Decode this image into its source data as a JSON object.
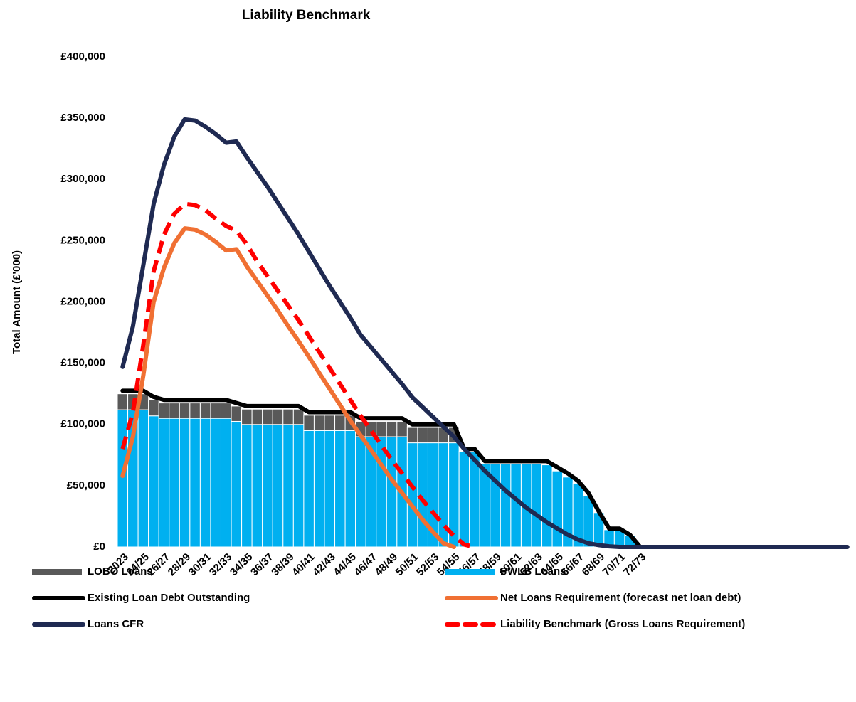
{
  "chart_data": {
    "type": "bar",
    "title": "Liability Benchmark",
    "y_label": "Total Amount (£'000)",
    "categories": [
      "2023",
      null,
      "24/25",
      null,
      "26/27",
      null,
      "28/29",
      null,
      "30/31",
      null,
      "32/33",
      null,
      "34/35",
      null,
      "36/37",
      null,
      "38/39",
      null,
      "40/41",
      null,
      "42/43",
      null,
      "44/45",
      null,
      "46/47",
      null,
      "48/49",
      null,
      "50/51",
      null,
      "52/53",
      null,
      "54/55",
      null,
      "56/57",
      null,
      "58/59",
      null,
      "60/61",
      null,
      "62/63",
      null,
      "64/65",
      null,
      "66/67",
      null,
      "68/69",
      null,
      "70/71",
      null,
      "72/73",
      null,
      null,
      null,
      null,
      null,
      null,
      null,
      null,
      null,
      null,
      null,
      null,
      null,
      null,
      null,
      null,
      null,
      null,
      null,
      null
    ],
    "ylim": [
      0,
      400000
    ],
    "yticks": [
      {
        "value": 0,
        "label": "£0"
      },
      {
        "value": 50000,
        "label": "£50,000"
      },
      {
        "value": 100000,
        "label": "£100,000"
      },
      {
        "value": 150000,
        "label": "£150,000"
      },
      {
        "value": 200000,
        "label": "£200,000"
      },
      {
        "value": 250000,
        "label": "£250,000"
      },
      {
        "value": 300000,
        "label": "£300,000"
      },
      {
        "value": 350000,
        "label": "£350,000"
      },
      {
        "value": 400000,
        "label": "£400,000"
      }
    ],
    "grid": false,
    "stacked": true,
    "series": [
      {
        "name": "LOBO Loans",
        "type": "bar",
        "color": "#595959",
        "values": [
          13000,
          13000,
          13000,
          13000,
          12500,
          12500,
          12500,
          12500,
          12500,
          12500,
          12500,
          12500,
          12500,
          12500,
          12500,
          12500,
          12500,
          12500,
          12500,
          12500,
          12500,
          12500,
          12500,
          12500,
          12500,
          12500,
          12500,
          12500,
          12500,
          12500,
          12500,
          12500,
          12500,
          0,
          0,
          0,
          0,
          0,
          0,
          0,
          0,
          0,
          0,
          0,
          0,
          0,
          0,
          0,
          0,
          0,
          0,
          0,
          0,
          0,
          0,
          0,
          0,
          0,
          0,
          0,
          0,
          0,
          0,
          0,
          0,
          0,
          0,
          0,
          0,
          0,
          0
        ]
      },
      {
        "name": "PWLB Loans",
        "type": "bar",
        "color": "#00b0f0",
        "values": [
          112000,
          112000,
          112000,
          107000,
          105000,
          105000,
          105000,
          105000,
          105000,
          105000,
          105000,
          102500,
          100000,
          100000,
          100000,
          100000,
          100000,
          100000,
          95000,
          95000,
          95000,
          95000,
          95000,
          90000,
          90000,
          90000,
          90000,
          90000,
          85000,
          85000,
          85000,
          85000,
          85000,
          78000,
          78000,
          68000,
          68000,
          68000,
          68000,
          68000,
          68000,
          67000,
          62000,
          57000,
          52000,
          42000,
          28000,
          14000,
          14000,
          9000,
          0,
          0,
          0,
          0,
          0,
          0,
          0,
          0,
          0,
          0,
          0,
          0,
          0,
          0,
          0,
          0,
          0,
          0,
          0,
          0,
          0
        ]
      },
      {
        "name": "Existing Loan Debt Outstanding",
        "type": "line",
        "color": "#000000",
        "line_style": "solid",
        "values": [
          127500,
          127500,
          127500,
          122500,
          120000,
          120000,
          120000,
          120000,
          120000,
          120000,
          120000,
          117500,
          115000,
          115000,
          115000,
          115000,
          115000,
          115000,
          110000,
          110000,
          110000,
          110000,
          110000,
          105000,
          105000,
          105000,
          105000,
          105000,
          100000,
          100000,
          100000,
          100000,
          100000,
          80000,
          80000,
          70000,
          70000,
          70000,
          70000,
          70000,
          70000,
          70000,
          65000,
          60000,
          54000,
          44000,
          29000,
          15000,
          15000,
          10000,
          0,
          0,
          0,
          0,
          0,
          0,
          0,
          0,
          0,
          0,
          0,
          0,
          0,
          0,
          0,
          0,
          0,
          0,
          0,
          0,
          0
        ]
      },
      {
        "name": "Net Loans Requirement (forecast net loan debt)",
        "type": "line",
        "color": "#f07033",
        "line_style": "solid",
        "values": [
          58000,
          90000,
          140000,
          200000,
          228000,
          248000,
          260000,
          259000,
          255000,
          249000,
          242000,
          243000,
          229000,
          217000,
          205000,
          193000,
          180000,
          168000,
          155000,
          142000,
          129000,
          116000,
          103000,
          91000,
          79000,
          67000,
          55000,
          44000,
          33000,
          22000,
          12000,
          3000,
          0,
          null,
          null,
          null,
          null,
          null,
          null,
          null,
          null,
          null,
          null,
          null,
          null,
          null,
          null,
          null,
          null,
          null,
          null,
          null,
          null,
          null,
          null,
          null,
          null,
          null,
          null,
          null,
          null,
          null,
          null,
          null,
          null,
          null,
          null,
          null,
          null,
          null,
          null
        ]
      },
      {
        "name": "Loans CFR",
        "type": "line",
        "color": "#1f2a52",
        "line_style": "solid",
        "values": [
          147000,
          180000,
          230000,
          280000,
          312000,
          335000,
          349000,
          348000,
          343000,
          337000,
          330000,
          331000,
          318000,
          306000,
          294000,
          281000,
          268000,
          255000,
          241000,
          227000,
          213000,
          200000,
          187000,
          173000,
          163000,
          153000,
          143000,
          133000,
          122000,
          114000,
          106000,
          98000,
          90000,
          80000,
          71000,
          62000,
          54000,
          46000,
          39000,
          32000,
          26000,
          20000,
          15000,
          10000,
          6000,
          3000,
          1500,
          500,
          0,
          0,
          0,
          0,
          0,
          0,
          0,
          0,
          0,
          0,
          0,
          0,
          0,
          0,
          0,
          0,
          0,
          0,
          0,
          0,
          0,
          0,
          0
        ]
      },
      {
        "name": "Liability Benchmark (Gross Loans Requirement)",
        "type": "line",
        "color": "#ff0000",
        "line_style": "dashed",
        "values": [
          80000,
          110000,
          165000,
          225000,
          255000,
          272000,
          280000,
          279000,
          275000,
          268000,
          262000,
          258000,
          247000,
          233000,
          221000,
          209000,
          197000,
          185000,
          172000,
          159000,
          146000,
          133000,
          120000,
          107000,
          95000,
          83000,
          71000,
          60000,
          49000,
          38000,
          28000,
          18000,
          9000,
          2000,
          0,
          null,
          null,
          null,
          null,
          null,
          null,
          null,
          null,
          null,
          null,
          null,
          null,
          null,
          null,
          null,
          null,
          null,
          null,
          null,
          null,
          null,
          null,
          null,
          null,
          null,
          null,
          null,
          null,
          null,
          null,
          null,
          null,
          null,
          null,
          null,
          null
        ]
      }
    ]
  }
}
